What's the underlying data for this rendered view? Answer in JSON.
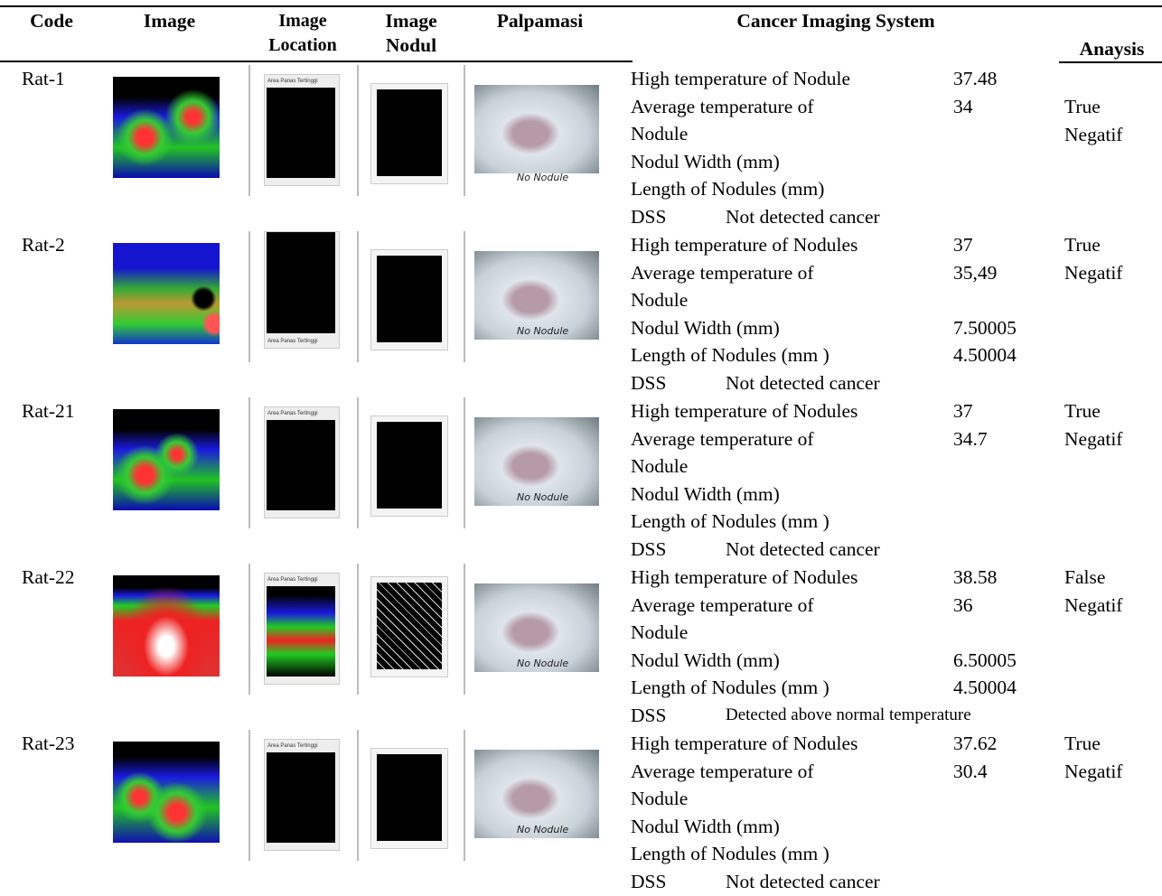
{
  "header": {
    "code": "Code",
    "image": "Image",
    "image_location": "Image Location",
    "image_nodul": "Image Nodul",
    "palpamasi": "Palpamasi",
    "cancer_imaging_system": "Cancer Imaging System",
    "analysis": "Anaysis"
  },
  "rows": [
    {
      "code": "Rat-1",
      "location_caption": "Area Panas Tertinggi",
      "palpation_caption": "No Nodule",
      "measures": [
        {
          "label": "High temperature of Nodule",
          "value": "37.48"
        },
        {
          "label": "Average temperature of Nodule",
          "value": "34"
        },
        {
          "label": "Nodul Width (mm)"
        },
        {
          "label": "Length of Nodules (mm)"
        }
      ],
      "dss_label": "DSS",
      "dss": "Not detected cancer",
      "analysis": "True Negatif"
    },
    {
      "code": "Rat-2",
      "location_caption": "Area Panas Tertinggi",
      "palpation_caption": "No Nodule",
      "measures": [
        {
          "label": "High temperature of Nodules",
          "value": "37"
        },
        {
          "label": "Average temperature of Nodule",
          "value": "35,49"
        },
        {
          "label": "Nodul Width (mm)",
          "value": "7.50005"
        },
        {
          "label": "Length of Nodules (mm )",
          "value": "4.50004"
        }
      ],
      "dss_label": "DSS",
      "dss": "Not detected cancer",
      "analysis": "True Negatif"
    },
    {
      "code": "Rat-21",
      "location_caption": "Area Panas Tertinggi",
      "palpation_caption": "No Nodule",
      "measures": [
        {
          "label": "High temperature of Nodules",
          "value": "37"
        },
        {
          "label": "Average temperature of Nodule",
          "value": "34.7"
        },
        {
          "label": "Nodul Width (mm)"
        },
        {
          "label": "Length of Nodules (mm )"
        }
      ],
      "dss_label": "DSS",
      "dss": "Not detected cancer",
      "analysis": "True Negatif"
    },
    {
      "code": "Rat-22",
      "location_caption": "Area Panas Tertinggi",
      "palpation_caption": "No Nodule",
      "measures": [
        {
          "label": "High temperature of Nodules",
          "value": "38.58"
        },
        {
          "label": "Average temperature of Nodule",
          "value": "36"
        },
        {
          "label": "Nodul Width (mm)",
          "value": "6.50005"
        },
        {
          "label": "Length of Nodules (mm )",
          "value": "4.50004"
        }
      ],
      "dss_label": "DSS",
      "dss": "Detected above normal temperature",
      "analysis": "False Negatif"
    },
    {
      "code": "Rat-23",
      "location_caption": "Area Panas Tertinggi",
      "palpation_caption": "No Nodule",
      "measures": [
        {
          "label": "High temperature of Nodules",
          "value": "37.62"
        },
        {
          "label": "Average temperature of Nodule",
          "value": "30.4"
        },
        {
          "label": "Nodul Width (mm)"
        },
        {
          "label": "Length of Nodules (mm )"
        }
      ],
      "dss_label": "DSS",
      "dss": "Not detected cancer",
      "analysis": "True Negatif"
    }
  ]
}
